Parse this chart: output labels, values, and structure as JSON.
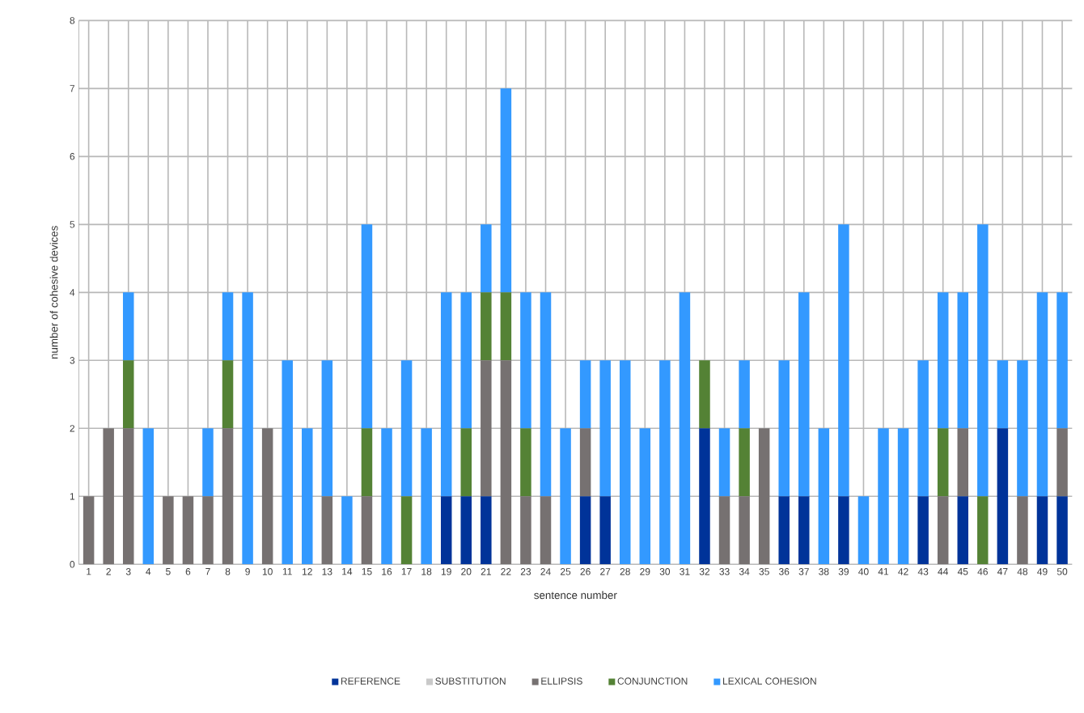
{
  "chart_data": {
    "type": "bar",
    "stacked": true,
    "xlabel": "sentence number",
    "ylabel": "number of cohesive devices",
    "categories": [
      "1",
      "2",
      "3",
      "4",
      "5",
      "6",
      "7",
      "8",
      "9",
      "10",
      "11",
      "12",
      "13",
      "14",
      "15",
      "16",
      "17",
      "18",
      "19",
      "20",
      "21",
      "22",
      "23",
      "24",
      "25",
      "26",
      "27",
      "28",
      "29",
      "30",
      "31",
      "32",
      "33",
      "34",
      "35",
      "36",
      "37",
      "38",
      "39",
      "40",
      "41",
      "42",
      "43",
      "44",
      "45",
      "46",
      "47",
      "48",
      "49",
      "50"
    ],
    "series": [
      {
        "name": "REFERENCE",
        "color": "#003399",
        "values": [
          0,
          0,
          0,
          0,
          0,
          0,
          0,
          0,
          0,
          0,
          0,
          0,
          0,
          0,
          0,
          0,
          0,
          0,
          1,
          1,
          1,
          0,
          0,
          0,
          0,
          1,
          1,
          0,
          0,
          0,
          0,
          2,
          0,
          0,
          0,
          1,
          1,
          0,
          1,
          0,
          0,
          0,
          1,
          0,
          1,
          0,
          2,
          0,
          1,
          1
        ]
      },
      {
        "name": "SUBSTITUTION",
        "color": "#c9c9c9",
        "values": [
          0,
          0,
          0,
          0,
          0,
          0,
          0,
          0,
          0,
          0,
          0,
          0,
          0,
          0,
          0,
          0,
          0,
          0,
          0,
          0,
          0,
          0,
          0,
          0,
          0,
          0,
          0,
          0,
          0,
          0,
          0,
          0,
          0,
          0,
          0,
          0,
          0,
          0,
          0,
          0,
          0,
          0,
          0,
          0,
          0,
          0,
          0,
          0,
          0,
          0
        ]
      },
      {
        "name": "ELLIPSIS",
        "color": "#767171",
        "values": [
          1,
          2,
          2,
          0,
          1,
          1,
          1,
          2,
          0,
          2,
          0,
          0,
          1,
          0,
          1,
          0,
          0,
          0,
          0,
          0,
          2,
          3,
          1,
          1,
          0,
          1,
          0,
          0,
          0,
          0,
          0,
          0,
          1,
          1,
          2,
          0,
          0,
          0,
          0,
          0,
          0,
          0,
          0,
          1,
          1,
          0,
          0,
          1,
          0,
          1
        ]
      },
      {
        "name": "CONJUNCTION",
        "color": "#548235",
        "values": [
          0,
          0,
          1,
          0,
          0,
          0,
          0,
          1,
          0,
          0,
          0,
          0,
          0,
          0,
          1,
          0,
          1,
          0,
          0,
          1,
          1,
          1,
          1,
          0,
          0,
          0,
          0,
          0,
          0,
          0,
          0,
          1,
          0,
          1,
          0,
          0,
          0,
          0,
          0,
          0,
          0,
          0,
          0,
          1,
          0,
          1,
          0,
          0,
          0,
          0
        ]
      },
      {
        "name": "LEXICAL COHESION",
        "color": "#3399ff",
        "values": [
          0,
          0,
          1,
          2,
          0,
          0,
          1,
          1,
          4,
          0,
          3,
          2,
          2,
          1,
          3,
          2,
          2,
          2,
          3,
          2,
          1,
          3,
          2,
          3,
          2,
          1,
          2,
          3,
          2,
          3,
          4,
          0,
          1,
          1,
          0,
          2,
          3,
          2,
          4,
          1,
          2,
          2,
          2,
          2,
          2,
          4,
          1,
          2,
          3,
          2
        ]
      }
    ],
    "ylim": [
      0,
      8
    ],
    "yticks": [
      0,
      1,
      2,
      3,
      4,
      5,
      6,
      7,
      8
    ],
    "grid": true,
    "legend": "bottom"
  }
}
